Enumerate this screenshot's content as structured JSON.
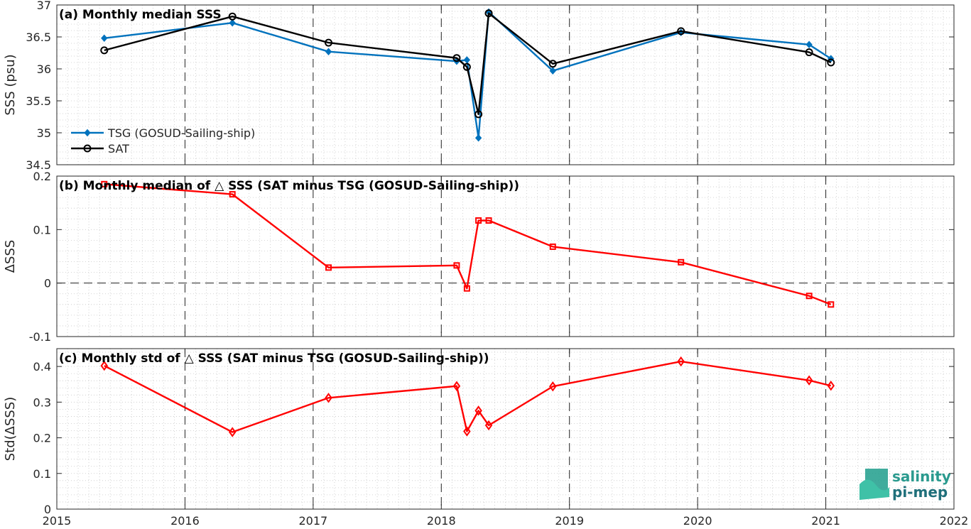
{
  "chart_data": [
    {
      "type": "line",
      "title": "(a) Monthly median SSS",
      "xlabel": "",
      "ylabel": "SSS (psu)",
      "xlim": [
        2015,
        2022
      ],
      "ylim": [
        34.5,
        37
      ],
      "yticks": [
        "34.5",
        "35",
        "35.5",
        "36",
        "36.5",
        "37"
      ],
      "grid": true,
      "legend_position": "bottom-left",
      "series": [
        {
          "name": "TSG (GOSUD-Sailing-ship)",
          "color": "#0072BD",
          "marker": "diamond-filled",
          "x": [
            2015.37,
            2016.37,
            2017.12,
            2018.12,
            2018.2,
            2018.29,
            2018.37,
            2018.87,
            2019.87,
            2020.87,
            2021.04
          ],
          "y": [
            36.48,
            36.72,
            36.27,
            36.12,
            36.14,
            34.92,
            36.89,
            35.97,
            36.57,
            36.38,
            36.16
          ]
        },
        {
          "name": "SAT",
          "color": "#000000",
          "marker": "circle-open",
          "x": [
            2015.37,
            2016.37,
            2017.12,
            2018.12,
            2018.2,
            2018.29,
            2018.37,
            2018.87,
            2019.87,
            2020.87,
            2021.04
          ],
          "y": [
            36.29,
            36.82,
            36.41,
            36.17,
            36.03,
            35.29,
            36.87,
            36.08,
            36.59,
            36.26,
            36.1
          ]
        }
      ]
    },
    {
      "type": "line",
      "title": "(b) Monthly median of △ SSS (SAT minus TSG (GOSUD-Sailing-ship))",
      "xlabel": "",
      "ylabel": "ΔSSS",
      "xlim": [
        2015,
        2022
      ],
      "ylim": [
        -0.1,
        0.2
      ],
      "yticks": [
        "-0.1",
        "0",
        "0.1",
        "0.2"
      ],
      "grid": true,
      "zero_line": true,
      "series": [
        {
          "color": "#FF0000",
          "marker": "square-open",
          "x": [
            2015.37,
            2016.37,
            2017.12,
            2018.12,
            2018.2,
            2018.29,
            2018.37,
            2018.87,
            2019.87,
            2020.87,
            2021.04
          ],
          "y": [
            0.185,
            0.166,
            0.029,
            0.033,
            -0.01,
            0.117,
            0.117,
            0.068,
            0.039,
            -0.024,
            -0.04
          ]
        }
      ]
    },
    {
      "type": "line",
      "title": "(c) Monthly std of △ SSS (SAT minus TSG (GOSUD-Sailing-ship))",
      "xlabel": "",
      "ylabel": "Std(ΔSSS)",
      "xlim": [
        2015,
        2022
      ],
      "ylim": [
        0,
        0.45
      ],
      "yticks": [
        "0",
        "0.1",
        "0.2",
        "0.3",
        "0.4"
      ],
      "xticks": [
        "2015",
        "2016",
        "2017",
        "2018",
        "2019",
        "2020",
        "2021",
        "2022"
      ],
      "grid": true,
      "series": [
        {
          "color": "#FF0000",
          "marker": "diamond-open",
          "x": [
            2015.37,
            2016.37,
            2017.12,
            2018.12,
            2018.2,
            2018.29,
            2018.37,
            2018.87,
            2019.87,
            2020.87,
            2021.04
          ],
          "y": [
            0.402,
            0.216,
            0.312,
            0.345,
            0.218,
            0.276,
            0.235,
            0.344,
            0.414,
            0.361,
            0.346
          ]
        }
      ]
    }
  ],
  "logo": {
    "line1": "salinity",
    "line2": "pi-mep"
  }
}
